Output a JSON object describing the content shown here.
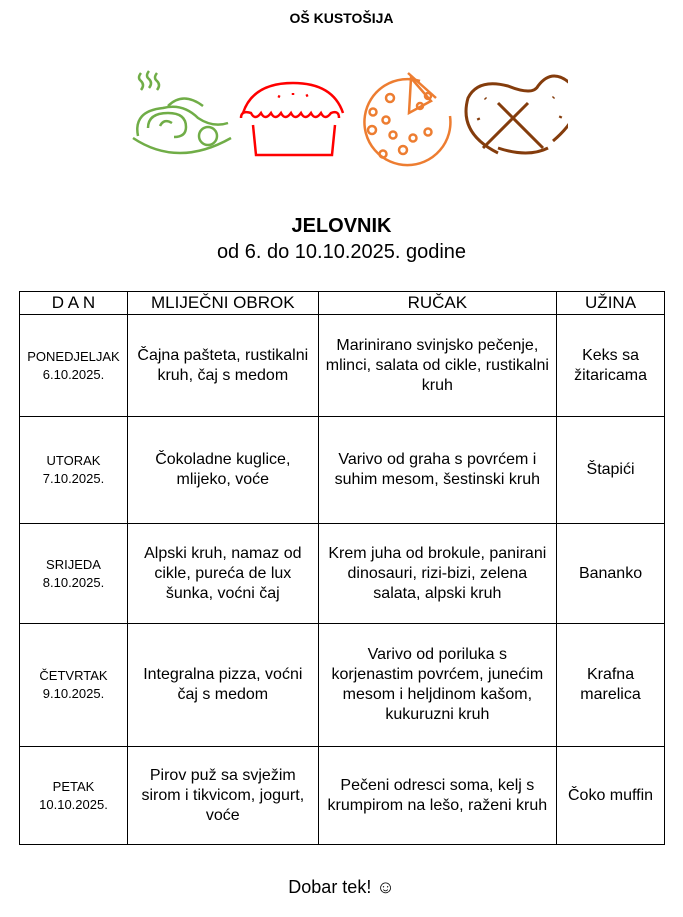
{
  "school": "OŠ KUSTOŠIJA",
  "icons": [
    {
      "name": "pasta-icon",
      "color": "#70AD47"
    },
    {
      "name": "pie-icon",
      "color": "#FF0000"
    },
    {
      "name": "pizza-icon",
      "color": "#ED7D31"
    },
    {
      "name": "pretzel-icon",
      "color": "#843C0C"
    }
  ],
  "title": "JELOVNIK",
  "subtitle": "od 6. do 10.10.2025. godine",
  "table": {
    "headers": [
      "D A N",
      "MLIJEČNI OBROK",
      "RUČAK",
      "UŽINA"
    ],
    "rows": [
      {
        "day": "PONEDJELJAK",
        "date": "6.10.2025.",
        "breakfast": "Čajna pašteta, rustikalni kruh, čaj s medom",
        "lunch": "Marinirano svinjsko pečenje, mlinci, salata od cikle, rustikalni kruh",
        "snack": "Keks sa žitaricama"
      },
      {
        "day": "UTORAK",
        "date": "7.10.2025.",
        "breakfast": "Čokoladne kuglice, mlijeko, voće",
        "lunch": "Varivo od graha s povrćem i suhim mesom, šestinski kruh",
        "snack": "Štapići"
      },
      {
        "day": "SRIJEDA",
        "date": "8.10.2025.",
        "breakfast": "Alpski kruh, namaz od cikle, pureća de lux šunka, voćni čaj",
        "lunch": "Krem juha od brokule, panirani dinosauri, rizi-bizi, zelena salata, alpski kruh",
        "snack": "Bananko"
      },
      {
        "day": "ČETVRTAK",
        "date": "9.10.2025.",
        "breakfast": "Integralna pizza, voćni čaj s medom",
        "lunch": "Varivo od poriluka s korjenastim povrćem, junećim mesom i heljdinom kašom, kukuruzni kruh",
        "snack": "Krafna marelica"
      },
      {
        "day": "PETAK",
        "date": "10.10.2025.",
        "breakfast": "Pirov puž sa svježim sirom i tikvicom, jogurt, voće",
        "lunch": "Pečeni odresci soma, kelj s krumpirom na lešo, raženi kruh",
        "snack": "Čoko muffin"
      }
    ]
  },
  "footer": "Dobar tek! ☺"
}
